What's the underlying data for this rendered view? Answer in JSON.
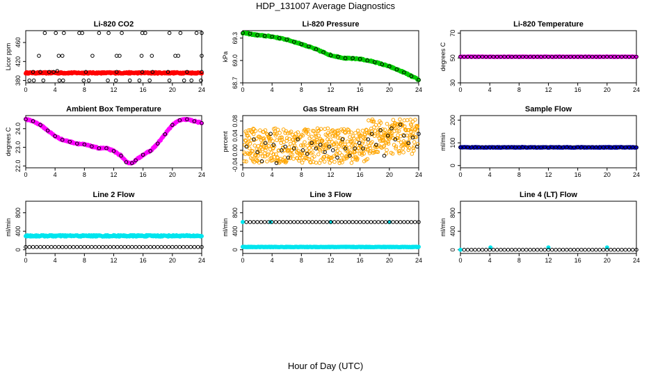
{
  "page": {
    "title": "HDP_131007  Average Diagnostics",
    "xlabel": "Hour of Day (UTC)"
  },
  "chart_data": [
    {
      "type": "scatter",
      "title": "Li-820 CO2",
      "ylabel": "Licor ppm",
      "xlim": [
        0,
        24
      ],
      "ylim": [
        375,
        485
      ],
      "xticks": [
        0,
        4,
        8,
        12,
        16,
        20,
        24
      ],
      "yticks": [
        380,
        420,
        460
      ],
      "grid": false,
      "series": [
        {
          "color": "#ff0000",
          "marker": "filled",
          "dense": true,
          "x_range": [
            0,
            24
          ],
          "y_base": 396,
          "y_spread": 1.5
        },
        {
          "color": "#000000",
          "marker": "open",
          "points": [
            [
              0.5,
              380
            ],
            [
              1,
              398
            ],
            [
              2,
              398
            ],
            [
              2.6,
              480
            ],
            [
              3.2,
              398
            ],
            [
              3.8,
              398
            ],
            [
              4.1,
              480
            ],
            [
              4.3,
              400
            ],
            [
              5.2,
              480
            ],
            [
              7.3,
              480
            ],
            [
              7.7,
              480
            ],
            [
              1.8,
              432
            ],
            [
              4.5,
              432
            ],
            [
              5,
              432
            ],
            [
              9.1,
              432
            ],
            [
              12.4,
              432
            ],
            [
              12.8,
              432
            ],
            [
              15.8,
              432
            ],
            [
              17.2,
              432
            ],
            [
              20.4,
              432
            ],
            [
              20.8,
              432
            ],
            [
              24,
              432
            ],
            [
              1.1,
              380
            ],
            [
              2.4,
              380
            ],
            [
              4.6,
              380
            ],
            [
              5.1,
              380
            ],
            [
              7.9,
              380
            ],
            [
              8.6,
              380
            ],
            [
              11.2,
              380
            ],
            [
              12.3,
              380
            ],
            [
              14.2,
              380
            ],
            [
              15.5,
              380
            ],
            [
              16.9,
              380
            ],
            [
              19.6,
              380
            ],
            [
              21.6,
              380
            ],
            [
              22.6,
              380
            ],
            [
              23.9,
              380
            ],
            [
              10,
              480
            ],
            [
              11.3,
              480
            ],
            [
              13.1,
              480
            ],
            [
              15.9,
              480
            ],
            [
              16.3,
              480
            ],
            [
              19.6,
              480
            ],
            [
              21.1,
              480
            ],
            [
              23.3,
              480
            ],
            [
              24,
              480
            ],
            [
              8.2,
              398
            ],
            [
              12.4,
              398
            ],
            [
              15.9,
              398
            ],
            [
              17.3,
              398
            ],
            [
              19.4,
              398
            ],
            [
              22,
              398
            ],
            [
              24,
              398
            ]
          ]
        }
      ]
    },
    {
      "type": "line",
      "title": "Li-820 Pressure",
      "ylabel": "kPa",
      "xlim": [
        0,
        24
      ],
      "ylim": [
        68.7,
        69.4
      ],
      "xticks": [
        0,
        4,
        8,
        12,
        16,
        20,
        24
      ],
      "yticks": [
        68.7,
        69.0,
        69.3
      ],
      "ytick_labels": [
        "68.7",
        "69.0",
        "69.3"
      ],
      "grid": false,
      "series": [
        {
          "color": "#00cc00",
          "marker": "filled",
          "dense": true,
          "x": [
            0,
            2,
            4,
            6,
            8,
            10,
            12,
            14,
            16,
            18,
            20,
            22,
            24
          ],
          "y": [
            69.37,
            69.34,
            69.32,
            69.28,
            69.22,
            69.15,
            69.07,
            69.03,
            69.02,
            68.98,
            68.92,
            68.84,
            68.74
          ]
        },
        {
          "color": "#000000",
          "marker": "open",
          "x": [
            0,
            1,
            2,
            3,
            4,
            5,
            6,
            7,
            8,
            9,
            10,
            11,
            12,
            13,
            14,
            15,
            16,
            17,
            18,
            19,
            20,
            21,
            22,
            23,
            24
          ],
          "y": [
            69.37,
            69.36,
            69.34,
            69.33,
            69.32,
            69.3,
            69.28,
            69.25,
            69.22,
            69.19,
            69.15,
            69.11,
            69.07,
            69.05,
            69.03,
            69.03,
            69.02,
            69.0,
            68.98,
            68.95,
            68.92,
            68.88,
            68.84,
            68.79,
            68.74
          ]
        }
      ]
    },
    {
      "type": "scatter",
      "title": "Li-820 Temperature",
      "ylabel": "degrees C",
      "xlim": [
        0,
        24
      ],
      "ylim": [
        30,
        72
      ],
      "xticks": [
        0,
        4,
        8,
        12,
        16,
        20,
        24
      ],
      "yticks": [
        30,
        50,
        70
      ],
      "grid": false,
      "series": [
        {
          "color": "#ff00ff",
          "marker": "filled",
          "dense": true,
          "x_range": [
            0,
            24
          ],
          "y_base": 51,
          "y_spread": 0.2
        },
        {
          "color": "#000000",
          "marker": "open",
          "x_range": [
            0,
            24
          ],
          "step": 0.5,
          "y_base": 51
        }
      ]
    },
    {
      "type": "line",
      "title": "Ambient Box Temperature",
      "ylabel": "degrees C",
      "xlim": [
        0,
        24
      ],
      "ylim": [
        21.9,
        24.7
      ],
      "xticks": [
        0,
        4,
        8,
        12,
        16,
        20,
        24
      ],
      "yticks": [
        22.0,
        23.0,
        24.0
      ],
      "ytick_labels": [
        "22.0",
        "23.0",
        "24.0"
      ],
      "grid": false,
      "series": [
        {
          "color": "#ff00ff",
          "marker": "filled",
          "dense": true,
          "x": [
            0,
            1,
            2,
            3,
            4,
            5,
            6,
            7,
            8,
            9,
            10,
            11,
            12,
            13,
            13.7,
            14.5,
            15,
            16,
            17,
            18,
            19,
            20,
            21,
            22,
            23,
            24
          ],
          "y": [
            24.5,
            24.4,
            24.2,
            23.9,
            23.6,
            23.4,
            23.3,
            23.2,
            23.15,
            23.05,
            22.95,
            22.95,
            22.8,
            22.55,
            22.2,
            22.15,
            22.3,
            22.6,
            22.8,
            23.2,
            23.7,
            24.2,
            24.45,
            24.5,
            24.4,
            24.3
          ]
        },
        {
          "color": "#000000",
          "marker": "open",
          "x": [
            0,
            1,
            2,
            3,
            4,
            5,
            6,
            7,
            8,
            9,
            10,
            11,
            12,
            13,
            13.7,
            14.5,
            15,
            16,
            17,
            18,
            19,
            20,
            21,
            22,
            23,
            24
          ],
          "y": [
            24.5,
            24.4,
            24.2,
            23.9,
            23.6,
            23.4,
            23.3,
            23.2,
            23.15,
            23.05,
            22.95,
            22.95,
            22.8,
            22.55,
            22.2,
            22.15,
            22.3,
            22.6,
            22.8,
            23.2,
            23.7,
            24.2,
            24.45,
            24.5,
            24.4,
            24.3
          ]
        }
      ]
    },
    {
      "type": "scatter",
      "title": "Gas Stream RH",
      "ylabel": "percent",
      "xlim": [
        0,
        24
      ],
      "ylim": [
        -0.048,
        0.095
      ],
      "xticks": [
        0,
        4,
        8,
        12,
        16,
        20,
        24
      ],
      "yticks": [
        -0.04,
        0.0,
        0.04,
        0.08
      ],
      "ytick_labels": [
        "-0.04",
        "0.00",
        "0.04",
        "0.08"
      ],
      "grid": false,
      "series": [
        {
          "color": "#ffa500",
          "marker": "open",
          "dense": true,
          "x_range": [
            0,
            24
          ],
          "y_band": [
            -0.035,
            0.06
          ],
          "y_band_late": [
            -0.01,
            0.085
          ]
        },
        {
          "color": "#000000",
          "marker": "open",
          "points": [
            [
              0.5,
              0.01
            ],
            [
              1.5,
              0.03
            ],
            [
              2.0,
              -0.005
            ],
            [
              2.6,
              -0.03
            ],
            [
              3.1,
              0.02
            ],
            [
              3.8,
              0.045
            ],
            [
              4.2,
              0.015
            ],
            [
              4.6,
              -0.035
            ],
            [
              5.3,
              0.0
            ],
            [
              5.8,
              0.01
            ],
            [
              6.2,
              -0.02
            ],
            [
              7.0,
              0.005
            ],
            [
              7.5,
              0.03
            ],
            [
              8.2,
              0.0
            ],
            [
              8.8,
              -0.01
            ],
            [
              9.4,
              0.02
            ],
            [
              10.0,
              0.005
            ],
            [
              10.6,
              0.015
            ],
            [
              11.2,
              -0.005
            ],
            [
              11.8,
              0.01
            ],
            [
              12.3,
              0.0
            ],
            [
              12.9,
              -0.02
            ],
            [
              13.6,
              0.03
            ],
            [
              14.0,
              0.005
            ],
            [
              14.6,
              -0.015
            ],
            [
              15.3,
              0.005
            ],
            [
              15.9,
              0.02
            ],
            [
              16.4,
              0.005
            ],
            [
              17.1,
              0.03
            ],
            [
              17.6,
              0.045
            ],
            [
              18.2,
              0.015
            ],
            [
              18.8,
              0.055
            ],
            [
              19.3,
              -0.015
            ],
            [
              19.8,
              0.04
            ],
            [
              20.3,
              0.06
            ],
            [
              20.8,
              0.03
            ],
            [
              21.5,
              0.07
            ],
            [
              22.0,
              0.04
            ],
            [
              22.6,
              0.02
            ],
            [
              23.2,
              0.035
            ],
            [
              23.8,
              0.01
            ],
            [
              24.0,
              0.045
            ]
          ]
        }
      ]
    },
    {
      "type": "scatter",
      "title": "Sample Flow",
      "ylabel": "ml/min",
      "xlim": [
        0,
        24
      ],
      "ylim": [
        -10,
        220
      ],
      "xticks": [
        0,
        4,
        8,
        12,
        16,
        20,
        24
      ],
      "yticks": [
        0,
        100,
        200
      ],
      "grid": false,
      "series": [
        {
          "color": "#0000cc",
          "marker": "filled",
          "dense": true,
          "x_range": [
            0,
            24
          ],
          "y_base": 80,
          "y_spread": 1.5
        },
        {
          "color": "#000000",
          "marker": "open",
          "x_range": [
            0,
            24
          ],
          "step": 0.5,
          "y_base": 80
        }
      ]
    },
    {
      "type": "scatter",
      "title": "Line 2 Flow",
      "ylabel": "ml/min",
      "xlim": [
        0,
        24
      ],
      "ylim": [
        -80,
        1050
      ],
      "xticks": [
        0,
        4,
        8,
        12,
        16,
        20,
        24
      ],
      "yticks": [
        0,
        400,
        800
      ],
      "grid": false,
      "series": [
        {
          "color": "#00e5ee",
          "marker": "filled",
          "dense": true,
          "x_range": [
            0,
            24
          ],
          "y_base": 300,
          "y_spread": 15
        },
        {
          "color": "#000000",
          "marker": "open",
          "x_range": [
            0,
            24
          ],
          "step": 0.5,
          "y_base": 60
        }
      ]
    },
    {
      "type": "scatter",
      "title": "Line 3 Flow",
      "ylabel": "ml/min",
      "xlim": [
        0,
        24
      ],
      "ylim": [
        -80,
        1050
      ],
      "xticks": [
        0,
        4,
        8,
        12,
        16,
        20,
        24
      ],
      "yticks": [
        0,
        400,
        800
      ],
      "grid": false,
      "series": [
        {
          "color": "#00e5ee",
          "marker": "filled",
          "dense": true,
          "x_range": [
            0,
            24
          ],
          "y_base": 60,
          "y_spread": 5
        },
        {
          "color": "#00e5ee",
          "marker": "filled",
          "points": [
            [
              0,
              600
            ],
            [
              3.8,
              600
            ],
            [
              12,
              600
            ],
            [
              20,
              600
            ]
          ]
        },
        {
          "color": "#000000",
          "marker": "open",
          "x_range": [
            0.5,
            24
          ],
          "step": 0.5,
          "y_base": 600
        }
      ]
    },
    {
      "type": "scatter",
      "title": "Line 4 (LT) Flow",
      "ylabel": "ml/min",
      "xlim": [
        0,
        24
      ],
      "ylim": [
        -80,
        1050
      ],
      "xticks": [
        0,
        4,
        8,
        12,
        16,
        20,
        24
      ],
      "yticks": [
        0,
        400,
        800
      ],
      "grid": false,
      "series": [
        {
          "color": "#00e5ee",
          "marker": "filled",
          "points": [
            [
              0,
              0
            ],
            [
              4.1,
              50
            ],
            [
              12,
              50
            ],
            [
              20,
              50
            ]
          ]
        },
        {
          "color": "#000000",
          "marker": "open",
          "x_range": [
            0.5,
            24
          ],
          "step": 0.5,
          "y_base": 0
        }
      ]
    }
  ]
}
